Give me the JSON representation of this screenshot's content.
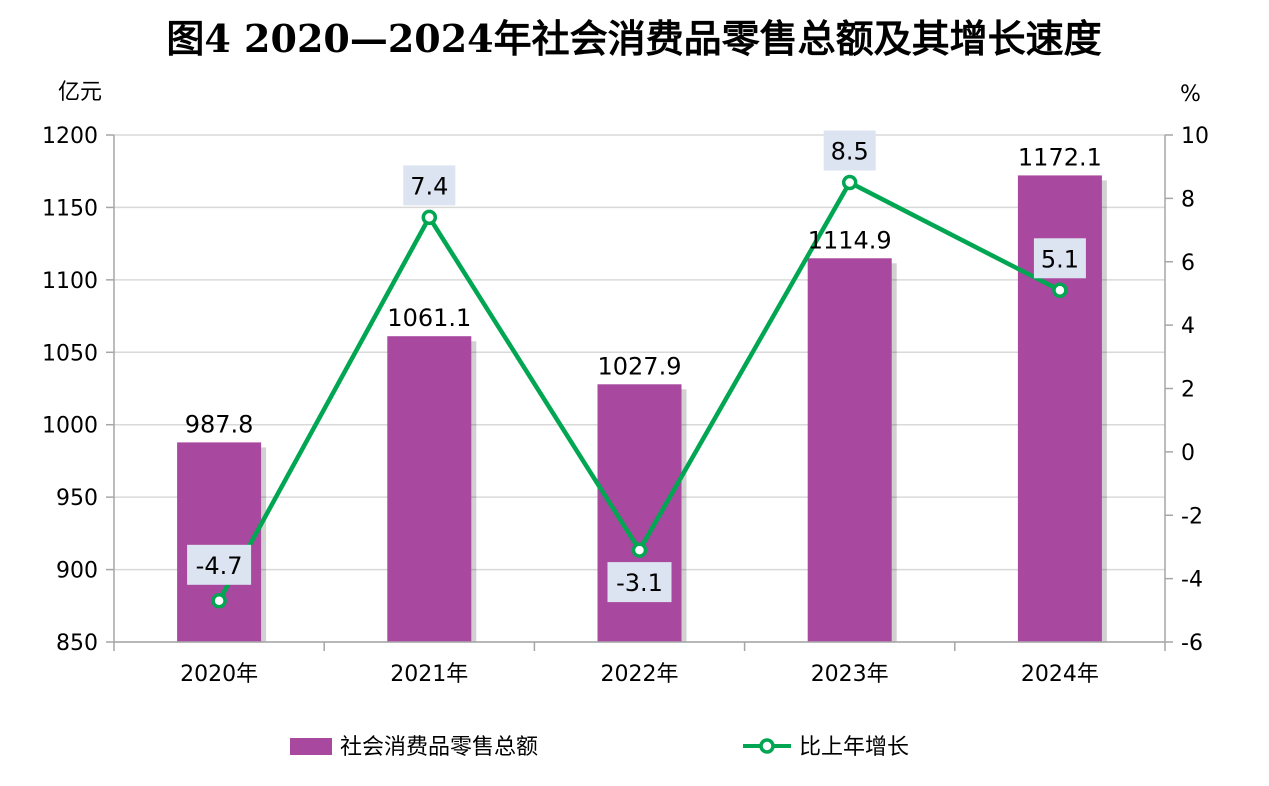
{
  "chart_data": {
    "type": "bar",
    "title": "图4  2020—2024年社会消费品零售总额及其增长速度",
    "categories": [
      "2020年",
      "2021年",
      "2022年",
      "2023年",
      "2024年"
    ],
    "left_axis": {
      "unit": "亿元",
      "ylim": [
        850,
        1200
      ],
      "ticks": [
        "1200",
        "1150",
        "1100",
        "1050",
        "1000",
        "950",
        "900",
        "850"
      ]
    },
    "right_axis": {
      "unit": "%",
      "ylim": [
        -6,
        10
      ],
      "ticks": [
        "10",
        "8",
        "6",
        "4",
        "2",
        "0",
        "-2",
        "-4",
        "-6"
      ]
    },
    "series": [
      {
        "name": "社会消费品零售总额",
        "type": "bar",
        "axis": "left",
        "color": "#A8489E",
        "values": [
          987.8,
          1061.1,
          1027.9,
          1114.9,
          1172.1
        ],
        "labels": [
          "987.8",
          "1061.1",
          "1027.9",
          "1114.9",
          "1172.1"
        ]
      },
      {
        "name": "比上年增长",
        "type": "line",
        "axis": "right",
        "color": "#00A651",
        "values": [
          -4.7,
          7.4,
          -3.1,
          8.5,
          5.1
        ],
        "labels": [
          "-4.7",
          "7.4",
          "-3.1",
          "8.5",
          "5.1"
        ]
      }
    ],
    "grid": true,
    "legend_position": "bottom"
  }
}
